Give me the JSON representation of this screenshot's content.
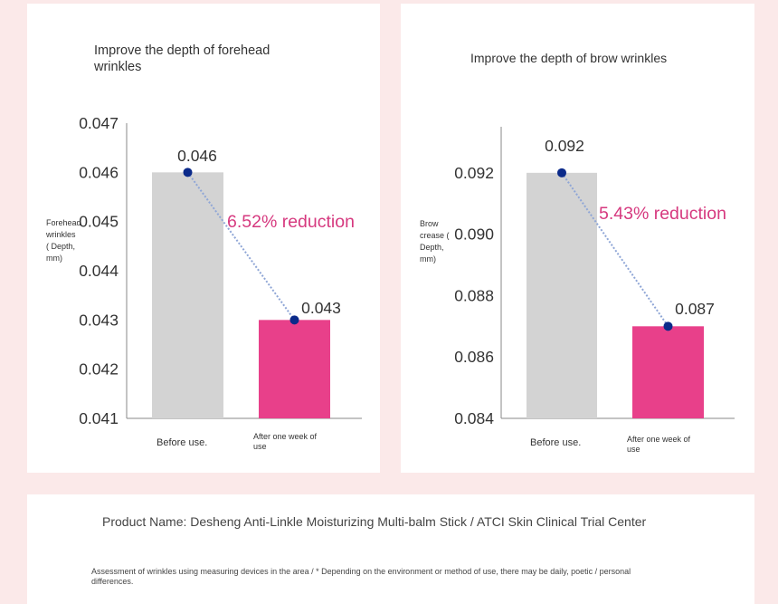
{
  "chart_data": [
    {
      "type": "bar",
      "title": "Improve the depth of forehead wrinkles",
      "ylabel": "Forehead wrinkles ( Depth, mm)",
      "categories": [
        "Before use.",
        "After one week of use"
      ],
      "values": [
        0.046,
        0.043
      ],
      "value_labels": [
        "0.046",
        "0.043"
      ],
      "ylim": [
        0.041,
        0.047
      ],
      "yticks": [
        "0.041",
        "0.042",
        "0.043",
        "0.044",
        "0.045",
        "0.046",
        "0.047"
      ],
      "annotation": "6.52% reduction",
      "bar_colors": [
        "#d3d3d3",
        "#e8408a"
      ],
      "line_color": "#8fa6d6",
      "point_color": "#0b2a8a",
      "grid": false
    },
    {
      "type": "bar",
      "title": "Improve the depth of brow wrinkles",
      "ylabel": "Brow crease ( Depth, mm)",
      "categories": [
        "Before use.",
        "After one week of use"
      ],
      "values": [
        0.092,
        0.087
      ],
      "value_labels": [
        "0.092",
        "0.087"
      ],
      "ylim": [
        0.084,
        0.0935
      ],
      "yticks": [
        "0.084",
        "0.086",
        "0.088",
        "0.090",
        "0.092"
      ],
      "annotation": "5.43% reduction",
      "bar_colors": [
        "#d3d3d3",
        "#e8408a"
      ],
      "line_color": "#8fa6d6",
      "point_color": "#0b2a8a",
      "grid": false
    }
  ],
  "footer": {
    "title": "Product Name: Desheng Anti-Linkle Moisturizing Multi-balm Stick / ATCI Skin Clinical Trial Center",
    "note": "Assessment of wrinkles using measuring devices in the area / * Depending on the environment or method of use, there may be daily, poetic / personal differences."
  }
}
